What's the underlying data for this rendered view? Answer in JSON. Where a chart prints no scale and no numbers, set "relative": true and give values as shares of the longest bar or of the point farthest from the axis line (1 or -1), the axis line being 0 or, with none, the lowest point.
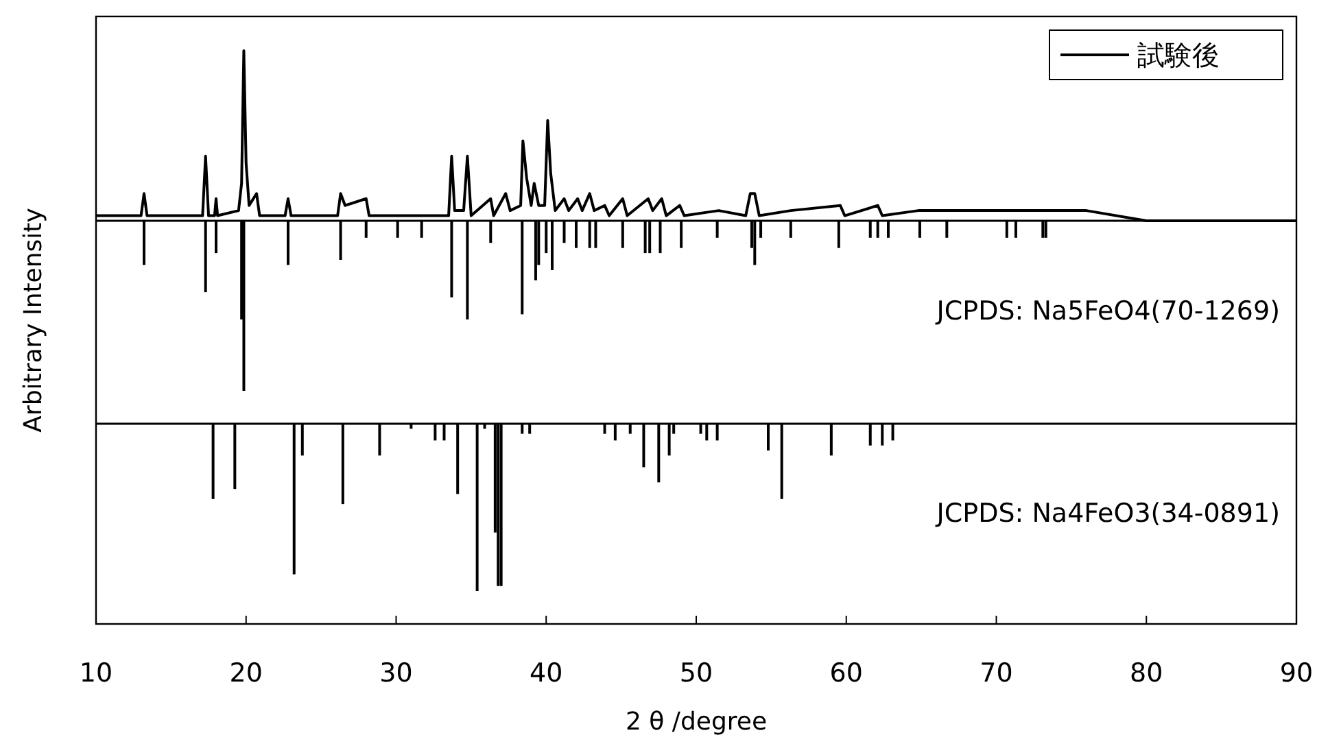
{
  "chart_data": [
    {
      "type": "line",
      "relative": true,
      "xlim": [
        10,
        90
      ],
      "legend": "top right",
      "ylabel": "Arbitrary Intensity",
      "series": [
        {
          "name": "試験後",
          "color": "#000000",
          "x": [
            10,
            13.0,
            13.2,
            13.4,
            17.1,
            17.3,
            17.5,
            17.9,
            18.0,
            18.1,
            19.5,
            19.7,
            19.85,
            20.0,
            20.2,
            20.7,
            20.9,
            22.6,
            22.8,
            23.0,
            26.1,
            26.3,
            26.6,
            28.0,
            28.2,
            33.5,
            33.7,
            33.9,
            34.5,
            34.75,
            35.0,
            36.3,
            36.5,
            37.3,
            37.6,
            38.3,
            38.45,
            38.7,
            39.0,
            39.2,
            39.5,
            39.9,
            40.1,
            40.3,
            40.6,
            41.2,
            41.5,
            42.1,
            42.4,
            42.9,
            43.2,
            43.9,
            44.2,
            45.1,
            45.4,
            46.8,
            47.1,
            47.7,
            48.0,
            48.9,
            49.2,
            51.5,
            53.3,
            53.6,
            53.9,
            54.2,
            56.3,
            59.6,
            59.9,
            62.1,
            62.4,
            64.8,
            73.3,
            76.0,
            80.0,
            90
          ],
          "values": [
            0.03,
            0.03,
            0.16,
            0.03,
            0.03,
            0.38,
            0.03,
            0.03,
            0.13,
            0.03,
            0.06,
            0.22,
            1,
            0.34,
            0.09,
            0.16,
            0.03,
            0.03,
            0.13,
            0.03,
            0.03,
            0.16,
            0.09,
            0.13,
            0.03,
            0.03,
            0.38,
            0.06,
            0.06,
            0.38,
            0.03,
            0.13,
            0.03,
            0.16,
            0.06,
            0.09,
            0.47,
            0.25,
            0.09,
            0.22,
            0.09,
            0.09,
            0.59,
            0.28,
            0.06,
            0.13,
            0.06,
            0.13,
            0.06,
            0.16,
            0.06,
            0.09,
            0.03,
            0.13,
            0.03,
            0.13,
            0.06,
            0.13,
            0.03,
            0.09,
            0.03,
            0.06,
            0.03,
            0.16,
            0.16,
            0.03,
            0.06,
            0.09,
            0.03,
            0.09,
            0.03,
            0.06,
            0.06,
            0.06,
            0,
            0
          ]
        },
        {
          "name": "JCPDS: Na5FeO4(70-1269)",
          "type": "bar",
          "color": "#000000",
          "x": [
            13.2,
            17.3,
            18.0,
            19.7,
            19.85,
            22.8,
            26.3,
            28.0,
            30.1,
            31.7,
            33.7,
            34.75,
            36.3,
            38.4,
            39.3,
            39.5,
            40.0,
            40.4,
            41.2,
            42.0,
            42.9,
            43.3,
            45.1,
            46.6,
            46.9,
            47.6,
            49.0,
            51.4,
            53.7,
            53.9,
            54.3,
            56.3,
            59.5,
            61.6,
            62.1,
            62.8,
            64.9,
            66.7,
            70.7,
            71.3,
            73.1,
            73.3
          ],
          "values": [
            -0.26,
            -0.42,
            -0.19,
            -0.58,
            -1,
            -0.26,
            -0.23,
            -0.1,
            -0.1,
            -0.1,
            -0.45,
            -0.58,
            -0.13,
            -0.55,
            -0.35,
            -0.26,
            -0.19,
            -0.29,
            -0.13,
            -0.16,
            -0.16,
            -0.16,
            -0.16,
            -0.19,
            -0.19,
            -0.19,
            -0.16,
            -0.1,
            -0.16,
            -0.26,
            -0.1,
            -0.1,
            -0.16,
            -0.1,
            -0.1,
            -0.1,
            -0.1,
            -0.1,
            -0.1,
            -0.1,
            -0.1,
            -0.1
          ]
        }
      ]
    },
    {
      "type": "bar",
      "relative": true,
      "xlim": [
        10,
        90
      ],
      "xticks": [
        10,
        20,
        30,
        40,
        50,
        60,
        70,
        80,
        90
      ],
      "xlabel": "2 θ /degree",
      "series": [
        {
          "name": "JCPDS: Na4FeO3(34-0891)",
          "color": "#000000",
          "x": [
            17.8,
            19.25,
            23.2,
            23.75,
            26.45,
            28.9,
            31.0,
            32.6,
            33.2,
            34.1,
            35.4,
            35.9,
            36.6,
            36.8,
            37.0,
            38.4,
            38.9,
            43.9,
            44.6,
            45.6,
            46.5,
            47.5,
            48.2,
            48.5,
            50.3,
            50.7,
            51.4,
            54.8,
            55.7,
            59.0,
            61.6,
            62.4,
            63.1
          ],
          "values": [
            -0.45,
            -0.39,
            -0.9,
            -0.19,
            -0.48,
            -0.19,
            -0.03,
            -0.1,
            -0.1,
            -0.42,
            -1,
            -0.03,
            -0.65,
            -0.97,
            -0.97,
            -0.06,
            -0.06,
            -0.06,
            -0.1,
            -0.06,
            -0.26,
            -0.35,
            -0.19,
            -0.06,
            -0.06,
            -0.1,
            -0.1,
            -0.16,
            -0.45,
            -0.19,
            -0.13,
            -0.13,
            -0.1
          ]
        }
      ]
    }
  ]
}
